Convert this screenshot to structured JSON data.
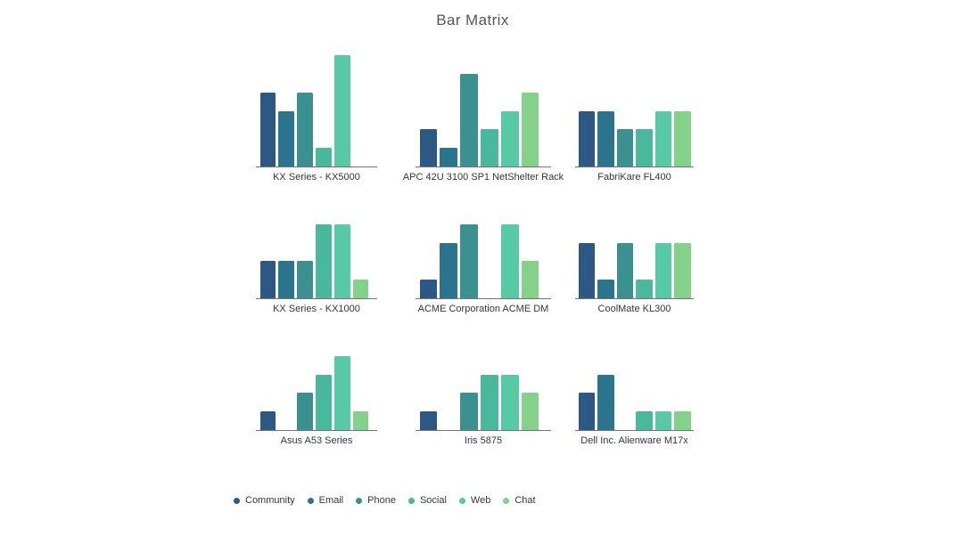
{
  "title": "Bar Matrix",
  "legend": {
    "items": [
      {
        "label": "Community",
        "color": "#2d5884"
      },
      {
        "label": "Email",
        "color": "#2a748e"
      },
      {
        "label": "Phone",
        "color": "#3a918f"
      },
      {
        "label": "Social",
        "color": "#49b89c"
      },
      {
        "label": "Web",
        "color": "#58c9a5"
      },
      {
        "label": "Chat",
        "color": "#84d189"
      }
    ]
  },
  "chart_data": {
    "type": "bar",
    "title": "Bar Matrix",
    "layout": "3x3 small multiples",
    "legend_position": "bottom",
    "grid": false,
    "ylim": [
      0,
      6.25
    ],
    "categories": [
      "Community",
      "Email",
      "Phone",
      "Social",
      "Web",
      "Chat"
    ],
    "charts": [
      {
        "label": "KX Series - KX5000",
        "values": [
          4,
          3,
          4,
          1,
          6,
          0
        ]
      },
      {
        "label": "APC 42U 3100 SP1 NetShelter Rack",
        "values": [
          2,
          1,
          5,
          2,
          3,
          4
        ]
      },
      {
        "label": "FabriKare FL400",
        "values": [
          3,
          3,
          2,
          2,
          3,
          3
        ]
      },
      {
        "label": "KX Series - KX1000",
        "values": [
          2,
          2,
          2,
          4,
          4,
          1
        ]
      },
      {
        "label": "ACME Corporation ACME DM",
        "values": [
          1,
          3,
          4,
          0,
          4,
          2
        ]
      },
      {
        "label": "CoolMate KL300",
        "values": [
          3,
          1,
          3,
          1,
          3,
          3
        ]
      },
      {
        "label": "Asus A53 Series",
        "values": [
          1,
          0,
          2,
          3,
          4,
          1
        ]
      },
      {
        "label": "Iris 5875",
        "values": [
          1,
          0,
          2,
          3,
          3,
          2
        ]
      },
      {
        "label": "Dell Inc. Alienware M17x",
        "values": [
          2,
          3,
          0,
          1,
          1,
          1
        ]
      }
    ]
  }
}
